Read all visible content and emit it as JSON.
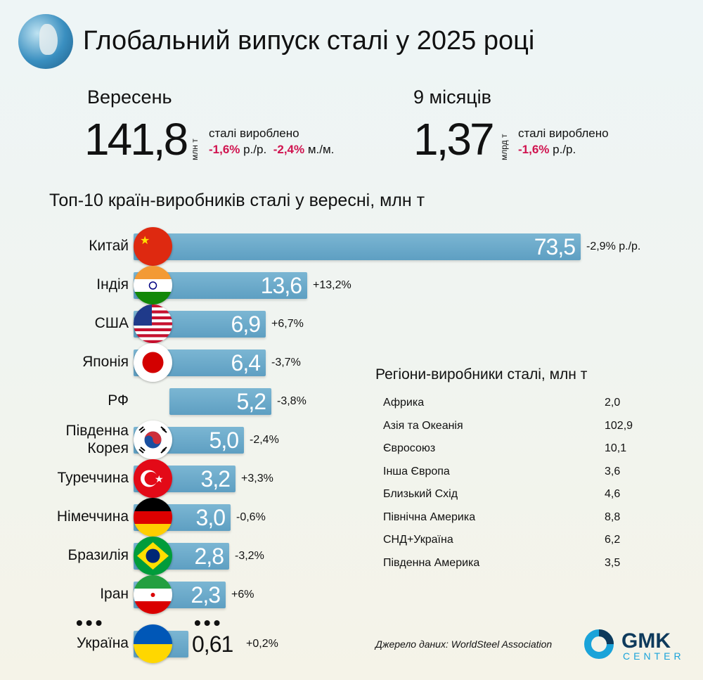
{
  "title": "Глобальний випуск сталі у 2025 році",
  "month": {
    "label": "Вересень",
    "value": "141,8",
    "unit": "млн т",
    "desc": "сталі вироблено",
    "yoy": "-1,6%",
    "yoy_suffix": "р./р.",
    "mom": "-2,4%",
    "mom_suffix": "м./м."
  },
  "ytd": {
    "label": "9 місяців",
    "value": "1,37",
    "unit": "млрд т",
    "desc": "сталі вироблено",
    "yoy": "-1,6%",
    "yoy_suffix": "р./р."
  },
  "chart_data": {
    "type": "bar",
    "orientation": "horizontal",
    "title": "Топ-10 країн-виробників сталі у вересні, млн т",
    "categories": [
      "Китай",
      "Індія",
      "США",
      "Японія",
      "РФ",
      "Південна Корея",
      "Туреччина",
      "Німеччина",
      "Бразилія",
      "Іран",
      "Україна"
    ],
    "values": [
      73.5,
      13.6,
      6.9,
      6.4,
      5.2,
      5.0,
      3.2,
      3.0,
      2.8,
      2.3,
      0.61
    ],
    "value_labels": [
      "73,5",
      "13,6",
      "6,9",
      "6,4",
      "5,2",
      "5,0",
      "3,2",
      "3,0",
      "2,8",
      "2,3",
      "0,61"
    ],
    "change_labels": [
      "-2,9% р./р.",
      "+13,2%",
      "+6,7%",
      "-3,7%",
      "-3,8%",
      "-2,4%",
      "+3,3%",
      "-0,6%",
      "-3,2%",
      "+6%",
      "+0,2%"
    ],
    "flags": [
      "china",
      "india",
      "usa",
      "japan",
      "",
      "south-korea",
      "turkey",
      "germany",
      "brazil",
      "iran",
      "ukraine"
    ],
    "ellipsis": "•••",
    "bar_color": "#6aaccd"
  },
  "regions": {
    "title": "Регіони-виробники сталі, млн т",
    "items": [
      {
        "name": "Африка",
        "value": "2,0"
      },
      {
        "name": "Азія та Океанія",
        "value": "102,9"
      },
      {
        "name": "Євросоюз",
        "value": "10,1"
      },
      {
        "name": "Інша Європа",
        "value": "3,6"
      },
      {
        "name": "Близький Схід",
        "value": "4,6"
      },
      {
        "name": "Північна Америка",
        "value": "8,8"
      },
      {
        "name": "СНД+Україна",
        "value": "6,2"
      },
      {
        "name": "Південна Америка",
        "value": "3,5"
      }
    ]
  },
  "source": "Джерело даних: WorldSteel Association",
  "logo": {
    "line1": "GMK",
    "line2": "CENTER"
  }
}
